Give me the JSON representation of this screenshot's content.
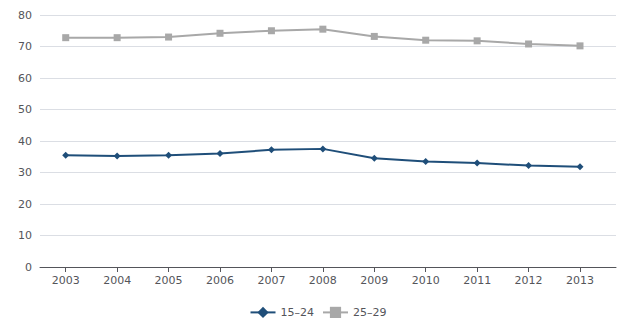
{
  "chart_data": {
    "type": "line",
    "x": [
      2003,
      2004,
      2005,
      2006,
      2007,
      2008,
      2009,
      2010,
      2011,
      2012,
      2013
    ],
    "series": [
      {
        "name": "15–24",
        "color": "#1f4e79",
        "marker": "diamond",
        "values": [
          35.5,
          35.2,
          35.5,
          36.0,
          37.2,
          37.5,
          34.5,
          33.5,
          33.0,
          32.2,
          31.8
        ]
      },
      {
        "name": "25–29",
        "color": "#a8a8a8",
        "marker": "square",
        "values": [
          72.8,
          72.8,
          73.0,
          74.2,
          75.0,
          75.5,
          73.2,
          72.0,
          71.8,
          70.8,
          70.2
        ]
      }
    ],
    "xlim": [
      2002.5,
      2013.7
    ],
    "xticks": [
      2003,
      2004,
      2005,
      2006,
      2007,
      2008,
      2009,
      2010,
      2011,
      2012,
      2013
    ],
    "ylim": [
      0,
      80
    ],
    "yticks": [
      0,
      10,
      20,
      30,
      40,
      50,
      60,
      70,
      80
    ],
    "grid": true,
    "legend": "bottom"
  }
}
